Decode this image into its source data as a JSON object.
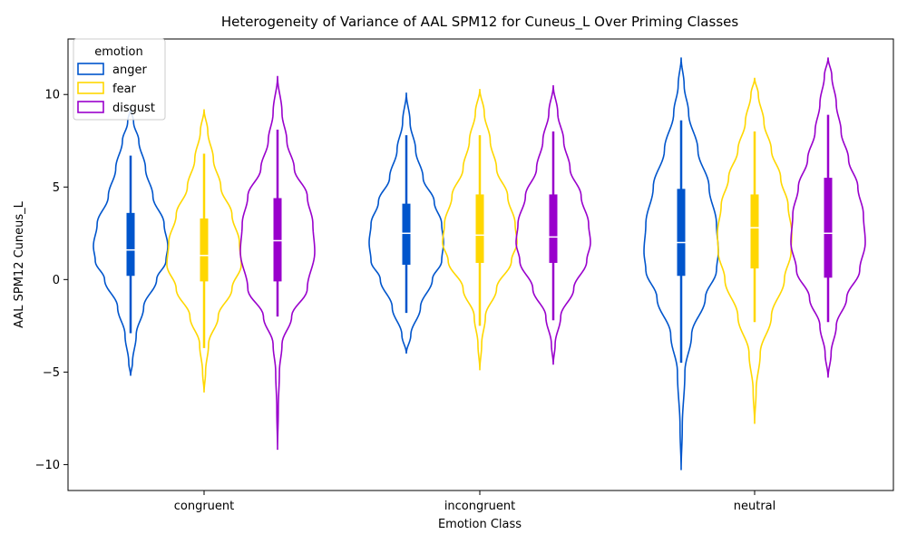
{
  "chart_data": {
    "type": "violin",
    "title": "Heterogeneity of Variance of AAL SPM12 for Cuneus_L Over Priming Classes",
    "xlabel": "Emotion Class",
    "ylabel": "AAL SPM12 Cuneus_L",
    "categories": [
      "congruent",
      "incongruent",
      "neutral"
    ],
    "ylim": [
      -11.4,
      13.0
    ],
    "yticks": [
      -10,
      -5,
      0,
      5,
      10
    ],
    "ytick_labels": [
      "−10",
      "−5",
      "0",
      "5",
      "10"
    ],
    "grid": false,
    "legend": {
      "title": "emotion",
      "placement": "top-left"
    },
    "series": [
      {
        "name": "anger",
        "color": "#0055cc",
        "violins": [
          {
            "min": -5.2,
            "max": 9.3,
            "whisker_low": -2.9,
            "whisker_high": 6.7,
            "q1": 0.2,
            "median": 1.6,
            "q3": 3.6,
            "profile": [
              [
                -5.2,
                0
              ],
              [
                -4.5,
                0.05
              ],
              [
                -3,
                0.15
              ],
              [
                -1.5,
                0.35
              ],
              [
                0,
                0.7
              ],
              [
                1,
                0.95
              ],
              [
                1.8,
                1.0
              ],
              [
                3,
                0.9
              ],
              [
                4.5,
                0.6
              ],
              [
                6,
                0.4
              ],
              [
                7.5,
                0.22
              ],
              [
                8.5,
                0.08
              ],
              [
                9.3,
                0
              ]
            ]
          },
          {
            "min": -4.0,
            "max": 10.1,
            "whisker_low": -1.8,
            "whisker_high": 7.8,
            "q1": 0.8,
            "median": 2.5,
            "q3": 4.1,
            "profile": [
              [
                -4,
                0
              ],
              [
                -3,
                0.12
              ],
              [
                -1.5,
                0.38
              ],
              [
                0,
                0.7
              ],
              [
                1,
                0.95
              ],
              [
                2,
                1.0
              ],
              [
                3,
                0.95
              ],
              [
                4.2,
                0.75
              ],
              [
                5.5,
                0.45
              ],
              [
                7,
                0.25
              ],
              [
                8.5,
                0.1
              ],
              [
                10.1,
                0
              ]
            ]
          },
          {
            "min": -10.3,
            "max": 12.0,
            "whisker_low": -4.5,
            "whisker_high": 8.6,
            "q1": 0.2,
            "median": 2.0,
            "q3": 4.9,
            "profile": [
              [
                -10.3,
                0
              ],
              [
                -8,
                0.03
              ],
              [
                -5,
                0.1
              ],
              [
                -3,
                0.28
              ],
              [
                -1,
                0.65
              ],
              [
                0.5,
                0.95
              ],
              [
                1.5,
                1.0
              ],
              [
                3,
                0.95
              ],
              [
                5,
                0.75
              ],
              [
                7,
                0.45
              ],
              [
                9,
                0.2
              ],
              [
                10.5,
                0.08
              ],
              [
                12,
                0
              ]
            ]
          }
        ]
      },
      {
        "name": "fear",
        "color": "#ffd700",
        "violins": [
          {
            "min": -6.1,
            "max": 9.2,
            "whisker_low": -3.7,
            "whisker_high": 6.8,
            "q1": -0.1,
            "median": 1.3,
            "q3": 3.3,
            "profile": [
              [
                -6.1,
                0
              ],
              [
                -5,
                0.04
              ],
              [
                -3.5,
                0.12
              ],
              [
                -2,
                0.38
              ],
              [
                -0.5,
                0.75
              ],
              [
                0.8,
                1.0
              ],
              [
                2,
                0.95
              ],
              [
                3.5,
                0.75
              ],
              [
                5,
                0.45
              ],
              [
                6.5,
                0.25
              ],
              [
                8,
                0.1
              ],
              [
                9.2,
                0
              ]
            ]
          },
          {
            "min": -4.9,
            "max": 10.3,
            "whisker_low": -2.5,
            "whisker_high": 7.8,
            "q1": 0.9,
            "median": 2.4,
            "q3": 4.6,
            "profile": [
              [
                -4.9,
                0
              ],
              [
                -3.5,
                0.05
              ],
              [
                -2,
                0.15
              ],
              [
                -0.5,
                0.45
              ],
              [
                1,
                0.85
              ],
              [
                2,
                1.0
              ],
              [
                3,
                0.95
              ],
              [
                4.5,
                0.75
              ],
              [
                6,
                0.45
              ],
              [
                7.5,
                0.28
              ],
              [
                9,
                0.12
              ],
              [
                10.3,
                0
              ]
            ]
          },
          {
            "min": -7.8,
            "max": 10.9,
            "whisker_low": -2.3,
            "whisker_high": 8.0,
            "q1": 0.6,
            "median": 2.8,
            "q3": 4.6,
            "profile": [
              [
                -7.8,
                0
              ],
              [
                -6,
                0.04
              ],
              [
                -4,
                0.15
              ],
              [
                -2,
                0.45
              ],
              [
                0,
                0.8
              ],
              [
                1.5,
                0.98
              ],
              [
                2.5,
                1.0
              ],
              [
                4,
                0.9
              ],
              [
                5.5,
                0.7
              ],
              [
                7,
                0.45
              ],
              [
                8.5,
                0.25
              ],
              [
                10,
                0.1
              ],
              [
                10.9,
                0
              ]
            ]
          }
        ]
      },
      {
        "name": "disgust",
        "color": "#9900cc",
        "violins": [
          {
            "min": -9.2,
            "max": 11.0,
            "whisker_low": -2.0,
            "whisker_high": 8.1,
            "q1": -0.1,
            "median": 2.1,
            "q3": 4.4,
            "profile": [
              [
                -9.2,
                0
              ],
              [
                -7,
                0.02
              ],
              [
                -5,
                0.05
              ],
              [
                -3.5,
                0.12
              ],
              [
                -2,
                0.38
              ],
              [
                -0.5,
                0.8
              ],
              [
                1.5,
                1.0
              ],
              [
                3,
                0.95
              ],
              [
                4.5,
                0.8
              ],
              [
                6,
                0.45
              ],
              [
                7.5,
                0.25
              ],
              [
                9,
                0.12
              ],
              [
                11,
                0
              ]
            ]
          },
          {
            "min": -4.6,
            "max": 10.5,
            "whisker_low": -2.2,
            "whisker_high": 8.0,
            "q1": 0.9,
            "median": 2.3,
            "q3": 4.6,
            "profile": [
              [
                -4.6,
                0
              ],
              [
                -3.5,
                0.05
              ],
              [
                -2,
                0.2
              ],
              [
                -0.5,
                0.55
              ],
              [
                1,
                0.9
              ],
              [
                2,
                1.0
              ],
              [
                3,
                0.95
              ],
              [
                4.5,
                0.75
              ],
              [
                6,
                0.45
              ],
              [
                7.5,
                0.28
              ],
              [
                9,
                0.12
              ],
              [
                10.5,
                0
              ]
            ]
          },
          {
            "min": -5.3,
            "max": 12.0,
            "whisker_low": -2.3,
            "whisker_high": 8.9,
            "q1": 0.1,
            "median": 2.5,
            "q3": 5.5,
            "profile": [
              [
                -5.3,
                0
              ],
              [
                -4,
                0.08
              ],
              [
                -2.5,
                0.22
              ],
              [
                -1,
                0.5
              ],
              [
                0.5,
                0.85
              ],
              [
                2,
                1.0
              ],
              [
                3.5,
                0.95
              ],
              [
                5,
                0.8
              ],
              [
                6.5,
                0.55
              ],
              [
                8,
                0.35
              ],
              [
                9.5,
                0.22
              ],
              [
                11,
                0.1
              ],
              [
                12,
                0
              ]
            ]
          }
        ]
      }
    ]
  }
}
